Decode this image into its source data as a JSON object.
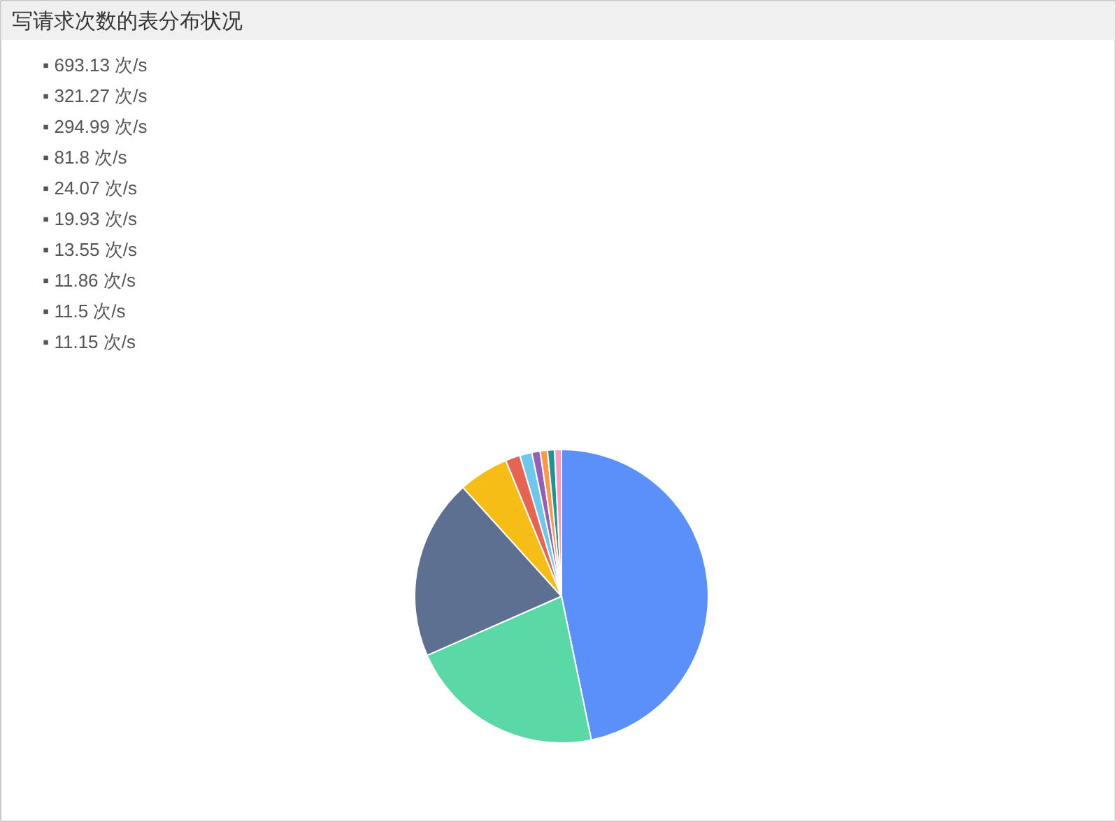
{
  "chart_data": {
    "type": "pie",
    "title": "写请求次数的表分布状况",
    "categories": [
      null,
      null,
      null,
      null,
      null,
      null,
      null,
      null,
      null,
      null
    ],
    "values": [
      46.74,
      21.66,
      19.89,
      5.51,
      1.62,
      1.34,
      0.91,
      0.8,
      0.78,
      0.75
    ],
    "colors": [
      "#5b8ff9",
      "#5ad8a6",
      "#5d7092",
      "#f6bd16",
      "#e86452",
      "#6dc8ec",
      "#945fb9",
      "#ff9845",
      "#1e9493",
      "#ff99c3"
    ],
    "annotations": [
      "▪ 693.13 次/s",
      "▪ 321.27 次/s",
      "▪ 294.99 次/s",
      "▪ 81.8 次/s",
      "▪ 24.07 次/s",
      "▪ 19.93 次/s",
      "▪ 13.55 次/s",
      "▪ 11.86 次/s",
      "▪ 11.5 次/s",
      "▪ 11.15 次/s"
    ]
  }
}
